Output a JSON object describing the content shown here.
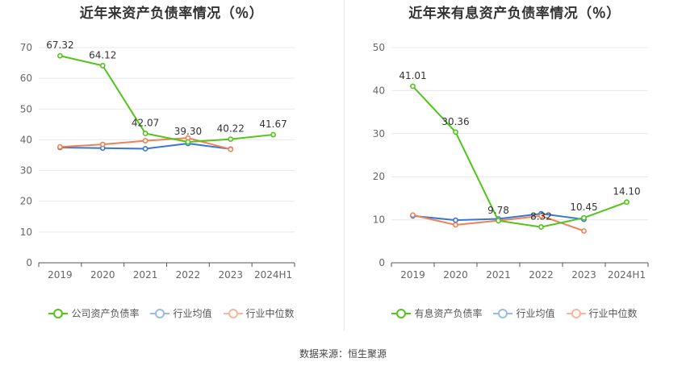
{
  "source": "数据来源：恒生聚源",
  "chart_data": [
    {
      "type": "line",
      "title": "近年来资产负债率情况（％）",
      "categories": [
        "2019",
        "2020",
        "2021",
        "2022",
        "2023",
        "2024H1"
      ],
      "ylim": [
        0,
        70
      ],
      "yticks": [
        0,
        10,
        20,
        30,
        40,
        50,
        60,
        70
      ],
      "grid": true,
      "legend_position": "bottom",
      "series": [
        {
          "name": "公司资产负债率",
          "color": "#52c41a",
          "values": [
            67.32,
            64.12,
            42.07,
            39.3,
            40.22,
            41.67
          ],
          "labels": [
            "67.32",
            "64.12",
            "42.07",
            "39.30",
            "40.22",
            "41.67"
          ]
        },
        {
          "name": "行业均值",
          "color": "#3b74d4",
          "values": [
            37.5,
            37.3,
            37.1,
            38.8,
            37.0,
            null
          ]
        },
        {
          "name": "行业中位数",
          "color": "#ee8156",
          "values": [
            37.7,
            38.5,
            39.7,
            40.6,
            36.9,
            null
          ]
        }
      ]
    },
    {
      "type": "line",
      "title": "近年来有息资产负债率情况（％）",
      "categories": [
        "2019",
        "2020",
        "2021",
        "2022",
        "2023",
        "2024H1"
      ],
      "ylim": [
        0,
        50
      ],
      "yticks": [
        0,
        10,
        20,
        30,
        40,
        50
      ],
      "grid": true,
      "legend_position": "bottom",
      "series": [
        {
          "name": "有息资产负债率",
          "color": "#52c41a",
          "values": [
            41.01,
            30.36,
            9.78,
            8.32,
            10.45,
            14.1
          ],
          "labels": [
            "41.01",
            "30.36",
            "9.78",
            "8.32",
            "10.45",
            "14.10"
          ]
        },
        {
          "name": "行业均值",
          "color": "#3b74d4",
          "values": [
            10.9,
            9.9,
            10.2,
            11.4,
            10.1,
            null
          ]
        },
        {
          "name": "行业中位数",
          "color": "#ee8156",
          "values": [
            11.1,
            8.8,
            9.8,
            10.9,
            7.4,
            null
          ]
        }
      ]
    }
  ]
}
